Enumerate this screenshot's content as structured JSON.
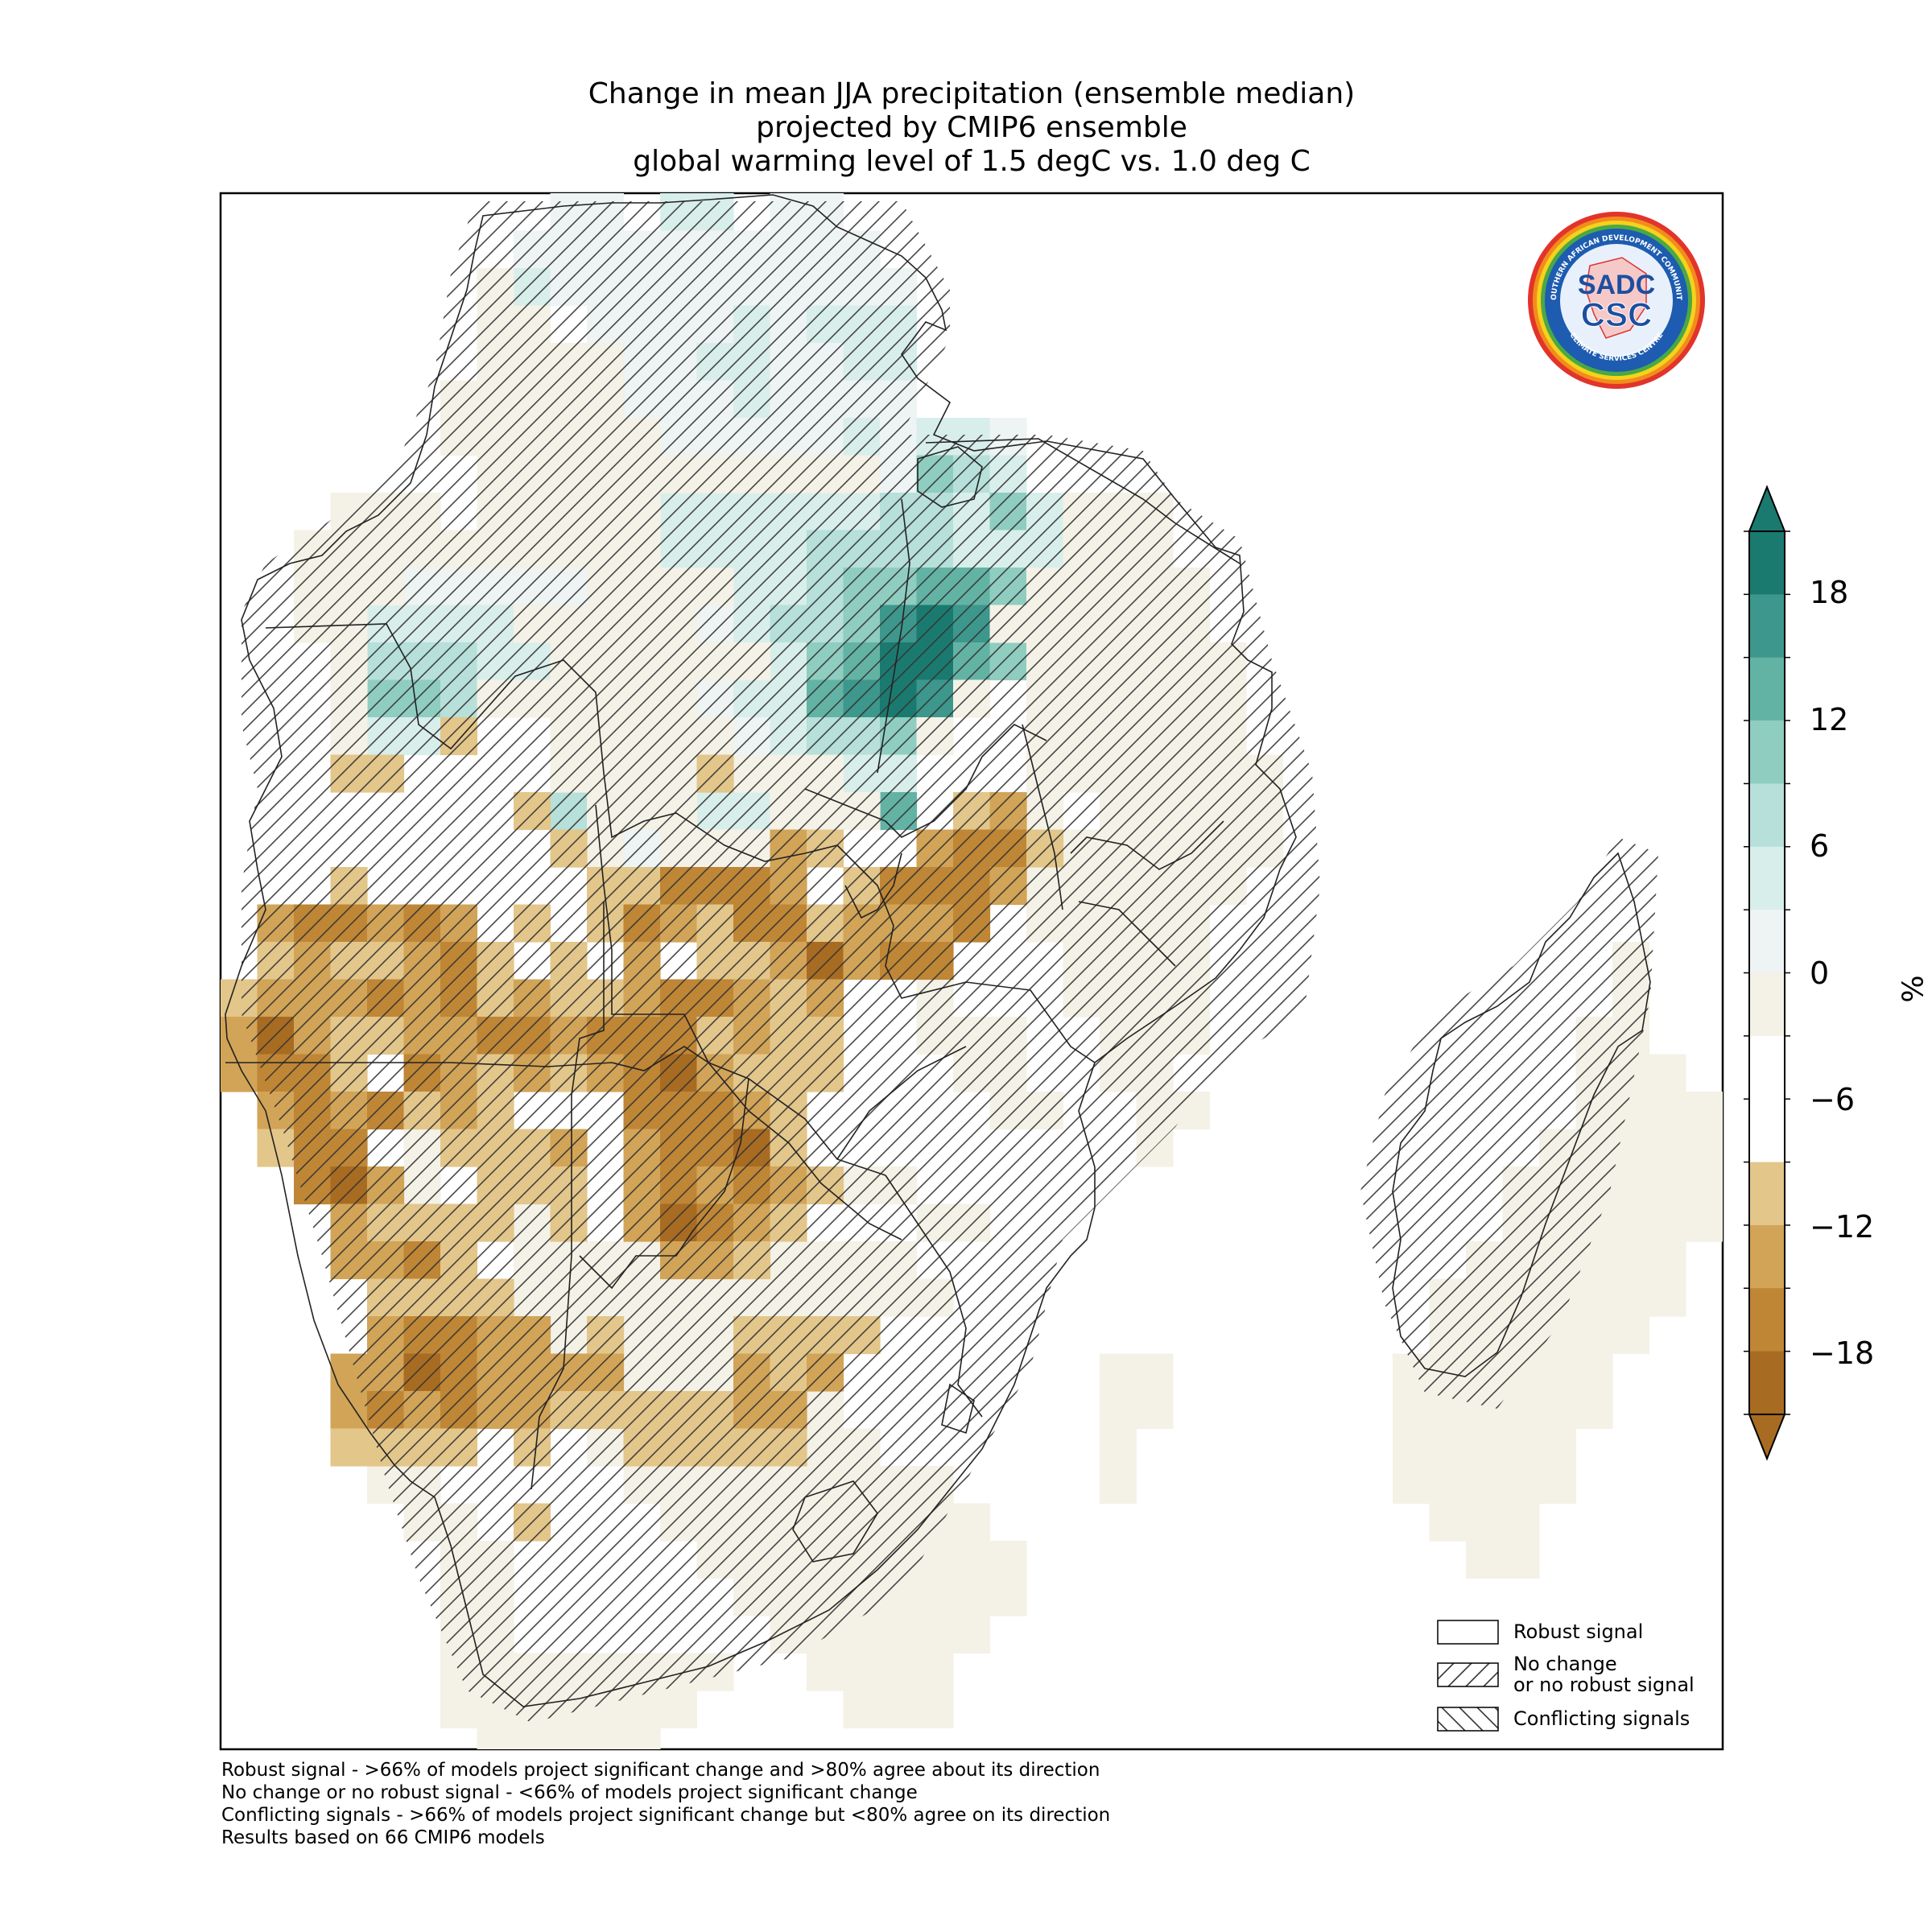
{
  "title": {
    "line1": "Change in mean JJA precipitation (ensemble median)",
    "line2": "projected by CMIP6 ensemble",
    "line3": "global warming level of 1.5 degC vs. 1.0 deg C"
  },
  "colorbar": {
    "label": "%",
    "ticks": [
      "18",
      "12",
      "6",
      "0",
      "−6",
      "−12",
      "−18"
    ],
    "levels": [
      21,
      18,
      15,
      12,
      9,
      6,
      3,
      0,
      -3,
      -6,
      -9,
      -12,
      -15,
      -18,
      -21
    ],
    "colors": [
      "#1b7a70",
      "#3d978c",
      "#63b3a5",
      "#8fcdc0",
      "#b6e0d9",
      "#d8eeeb",
      "#eef3f3",
      "#f4f1e6",
      "#ffffff",
      "#ffffff",
      "#e3c68a",
      "#d2a457",
      "#bf8636",
      "#a86b22"
    ]
  },
  "legend": {
    "robust": "Robust signal",
    "no_change_1": "No change",
    "no_change_2": "or no robust signal",
    "conflicting": "Conflicting signals"
  },
  "notes": [
    "Robust signal - >66% of models project significant change and >80% agree about its direction",
    "No change or no robust signal - <66% of models project significant change",
    "Conflicting signals - >66% of models project significant change but <80% agree on its direction",
    "Results based on 66 CMIP6 models"
  ],
  "logo": {
    "top_text": "SOUTHERN AFRICAN DEVELOPMENT COMMUNITY",
    "bottom_text": "CLIMATE SERVICES CENTRE",
    "mark_1": "SADC",
    "mark_2": "CSC"
  }
}
